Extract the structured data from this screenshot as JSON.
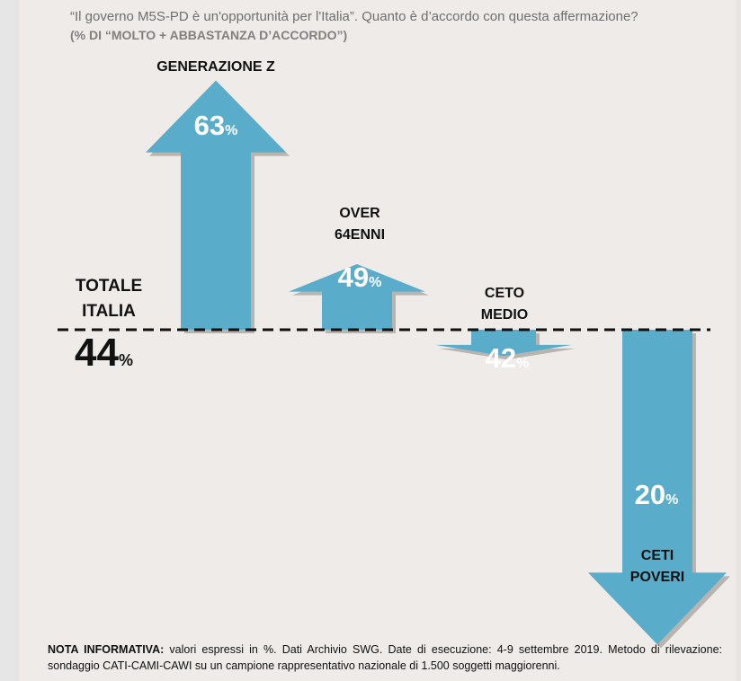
{
  "question": "“Il governo M5S-PD  è un'opportunità per l'Italia”. Quanto è d’accordo con questa affermazione?",
  "subtitle": "(% DI “MOLTO + ABBASTANZA D’ACCORDO”)",
  "total": {
    "label_line1": "TOTALE",
    "label_line2": "ITALIA",
    "value": "44",
    "unit": "%"
  },
  "note": {
    "label": "NOTA INFORMATIVA:",
    "text": " valori espressi in %. Dati Archivio SWG. Date di esecuzione: 4-9 settembre 2019. Metodo di rilevazione: sondaggio CATI-CAMI-CAWI su un campione rappresentativo nazionale di 1.500 soggetti maggiorenni."
  },
  "colors": {
    "arrow": "#5aaccb",
    "arrow_shadow": "#b8b4b0",
    "baseline": "#111111",
    "background": "#eeebe8"
  },
  "chart_data": {
    "type": "bar",
    "baseline": 44,
    "categories": [
      "GENERAZIONE Z",
      "OVER 64ENNI",
      "CETO MEDIO",
      "CETI POVERI"
    ],
    "category_lines": [
      [
        "GENERAZIONE Z"
      ],
      [
        "OVER",
        "64ENNI"
      ],
      [
        "CETO",
        "MEDIO"
      ],
      [
        "CETI",
        "POVERI"
      ]
    ],
    "values": [
      63,
      49,
      42,
      20
    ],
    "value_labels": [
      "63",
      "49",
      "42",
      "20"
    ],
    "unit": "%"
  }
}
